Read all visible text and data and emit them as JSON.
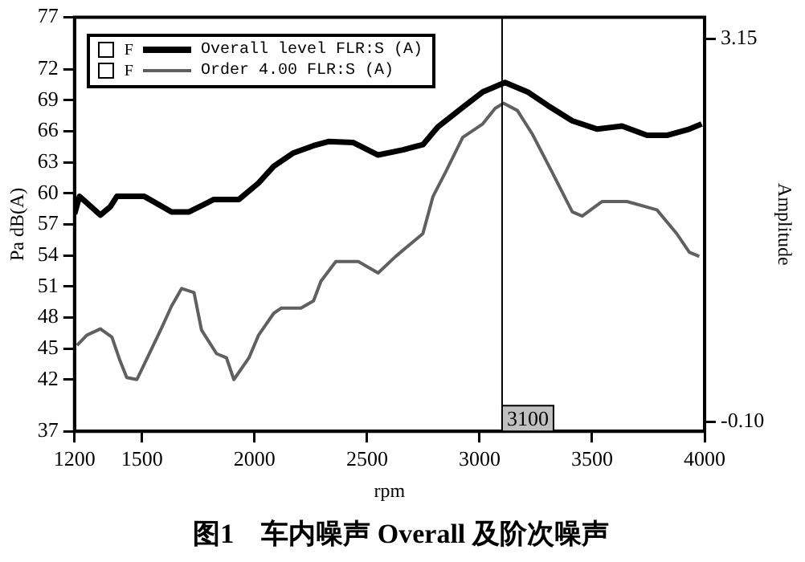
{
  "chart_data": {
    "type": "line",
    "title": "图1　车内噪声 Overall 及阶次噪声",
    "xlabel": "rpm",
    "ylabel": "Pa dB(A)",
    "y2label": "Amplitude",
    "xlim": [
      1200,
      4000
    ],
    "xticks": [
      1200,
      1500,
      2000,
      2500,
      3000,
      3500,
      4000
    ],
    "ylim": [
      37,
      77
    ],
    "yticks": [
      37,
      42,
      45,
      48,
      51,
      54,
      57,
      60,
      63,
      66,
      69,
      72,
      77
    ],
    "y2lim": [
      -0.18,
      3.33
    ],
    "y2ticks": [
      {
        "value": 3.15,
        "label": "3.15"
      },
      {
        "value": -0.1,
        "label": "-0.10"
      }
    ],
    "grid": false,
    "legend": "top left",
    "marker": "none",
    "line_style": "solid",
    "annotations": [
      "F",
      "F"
    ],
    "ref_lines": [
      {
        "axis": "x",
        "value": 3100,
        "label": "3100",
        "color": "#000000"
      }
    ],
    "series": [
      {
        "name": "Overall level FLR:S (A)",
        "color": "#000000",
        "x": [
          1200,
          1222,
          1315,
          1359,
          1388,
          1510,
          1631,
          1709,
          1819,
          1930,
          2018,
          2085,
          2173,
          2262,
          2328,
          2439,
          2549,
          2660,
          2748,
          2814,
          2925,
          3014,
          3113,
          3213,
          3302,
          3412,
          3523,
          3633,
          3744,
          3832,
          3932,
          3987
        ],
        "values": [
          58,
          59.7,
          57.9,
          58.7,
          59.7,
          59.7,
          58.2,
          58.2,
          59.4,
          59.4,
          61,
          62.6,
          63.9,
          64.6,
          65,
          64.9,
          63.7,
          64.2,
          64.7,
          66.4,
          68.3,
          69.8,
          70.7,
          69.8,
          68.5,
          67,
          66.2,
          66.5,
          65.6,
          65.6,
          66.2,
          66.7
        ]
      },
      {
        "name": "Order 4.00 FLR:S (A)",
        "color": "#606060",
        "x": [
          1211,
          1255,
          1315,
          1366,
          1399,
          1432,
          1477,
          1532,
          1587,
          1631,
          1676,
          1731,
          1764,
          1831,
          1875,
          1908,
          1975,
          2018,
          2085,
          2118,
          2206,
          2262,
          2295,
          2361,
          2461,
          2549,
          2627,
          2748,
          2793,
          2848,
          2925,
          3014,
          3069,
          3106,
          3168,
          3235,
          3323,
          3412,
          3456,
          3544,
          3655,
          3788,
          3876,
          3932,
          3976
        ],
        "values": [
          45.3,
          46.3,
          46.9,
          46.1,
          44,
          42.2,
          42,
          44.5,
          47,
          49.1,
          50.8,
          50.4,
          46.8,
          44.5,
          44.1,
          42,
          44.1,
          46.3,
          48.4,
          48.9,
          48.9,
          49.6,
          51.5,
          53.4,
          53.4,
          52.3,
          53.9,
          56.1,
          59.7,
          62,
          65.4,
          66.7,
          68.2,
          68.7,
          68,
          65.7,
          62,
          58.2,
          57.8,
          59.2,
          59.2,
          58.4,
          56.1,
          54.3,
          53.9
        ]
      }
    ]
  }
}
